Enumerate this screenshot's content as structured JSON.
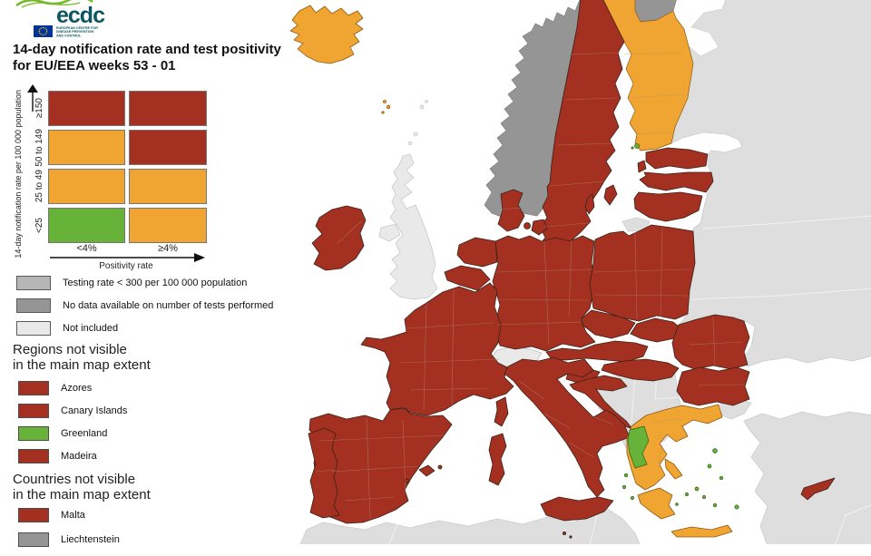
{
  "logo": {
    "wordmark": "ecdc",
    "org_lines": [
      "EUROPEAN CENTRE FOR",
      "DISEASE PREVENTION",
      "AND CONTROL"
    ],
    "brand_teal": "#0d5661",
    "brand_green": "#76b82a",
    "flag_blue": "#003399",
    "flag_gold": "#ffcc00"
  },
  "title": {
    "line1": "14-day notification rate and test positivity",
    "line2": "for EU/EEA weeks 53 - 01"
  },
  "matrix_legend": {
    "y_axis_label": "14-day notification rate per 100 000 population",
    "x_axis_label": "Positivity rate",
    "row_labels": [
      "≥150",
      "50 to 149",
      "25 to 49",
      "<25"
    ],
    "col_labels": [
      "<4%",
      "≥4%"
    ],
    "cells": [
      [
        "red",
        "red"
      ],
      [
        "orange",
        "red"
      ],
      [
        "orange",
        "orange"
      ],
      [
        "green",
        "orange"
      ]
    ]
  },
  "status_legend": [
    {
      "color_key": "gray_testing",
      "label": "Testing rate < 300 per 100 000 population"
    },
    {
      "color_key": "gray_nodata",
      "label": "No data available on number of tests performed"
    },
    {
      "color_key": "gray_notincluded",
      "label": "Not included"
    }
  ],
  "regions_not_visible": {
    "heading_line1": "Regions not visible",
    "heading_line2": "in the main map extent",
    "items": [
      {
        "label": "Azores",
        "color_key": "red"
      },
      {
        "label": "Canary Islands",
        "color_key": "red"
      },
      {
        "label": "Greenland",
        "color_key": "green"
      },
      {
        "label": "Madeira",
        "color_key": "red"
      }
    ]
  },
  "countries_not_visible": {
    "heading_line1": "Countries not visible",
    "heading_line2": "in the main map extent",
    "items": [
      {
        "label": "Malta",
        "color_key": "red"
      },
      {
        "label": "Liechtenstein",
        "color_key": "gray_nodata"
      }
    ]
  },
  "map": {
    "palette": {
      "red": "#A33020",
      "orange": "#F0A532",
      "green": "#67B239",
      "gray_nodata": "#959595",
      "gray_testing": "#b5b5b5",
      "gray_notincluded": "#e9e9e9",
      "gray_noneu": "#dedede",
      "sea": "#ffffff"
    },
    "regions": [
      {
        "name": "Iceland",
        "category": "orange"
      },
      {
        "name": "Faroe Islands",
        "category": "orange"
      },
      {
        "name": "Norway",
        "category": "no_data"
      },
      {
        "name": "Sweden",
        "category": "red"
      },
      {
        "name": "Finland",
        "category": "orange"
      },
      {
        "name": "Aland Islands",
        "category": "green"
      },
      {
        "name": "Estonia",
        "category": "red"
      },
      {
        "name": "Latvia",
        "category": "red"
      },
      {
        "name": "Lithuania",
        "category": "red"
      },
      {
        "name": "Denmark",
        "category": "red"
      },
      {
        "name": "Ireland",
        "category": "red"
      },
      {
        "name": "United Kingdom",
        "category": "not_included"
      },
      {
        "name": "Netherlands",
        "category": "red"
      },
      {
        "name": "Belgium",
        "category": "red"
      },
      {
        "name": "Luxembourg",
        "category": "red"
      },
      {
        "name": "Germany",
        "category": "red"
      },
      {
        "name": "Poland",
        "category": "red"
      },
      {
        "name": "Czechia",
        "category": "red"
      },
      {
        "name": "Slovakia",
        "category": "red"
      },
      {
        "name": "Austria",
        "category": "red"
      },
      {
        "name": "Hungary",
        "category": "red"
      },
      {
        "name": "Switzerland",
        "category": "not_included"
      },
      {
        "name": "France",
        "category": "red"
      },
      {
        "name": "Spain",
        "category": "red"
      },
      {
        "name": "Portugal",
        "category": "red"
      },
      {
        "name": "Italy",
        "category": "red"
      },
      {
        "name": "Slovenia",
        "category": "red"
      },
      {
        "name": "Croatia",
        "category": "red"
      },
      {
        "name": "Romania",
        "category": "red"
      },
      {
        "name": "Bulgaria",
        "category": "red"
      },
      {
        "name": "Greece",
        "category": "orange"
      },
      {
        "name": "Greece (Epirus region)",
        "category": "green"
      },
      {
        "name": "Greek islands (several)",
        "category": "green"
      },
      {
        "name": "Cyprus",
        "category": "red"
      }
    ]
  }
}
